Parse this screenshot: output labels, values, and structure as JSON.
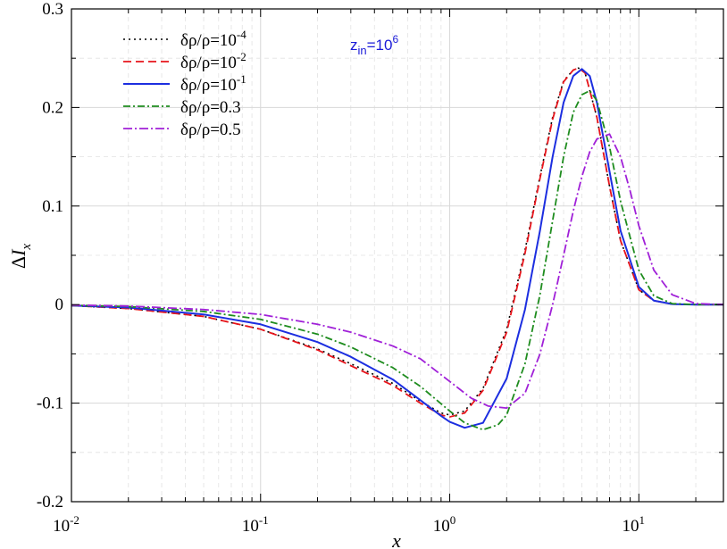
{
  "chart_data": {
    "type": "line",
    "xlabel": "x",
    "ylabel": "ΔI_x",
    "xscale": "log",
    "xlim": [
      0.01,
      28
    ],
    "ylim": [
      -0.2,
      0.3
    ],
    "grid": true,
    "legend_position": "top-left",
    "annotation": {
      "base": "z",
      "sub": "in",
      "mid": "=10",
      "sup": "6"
    },
    "x_ticks": [
      {
        "base": "10",
        "exp": "-2",
        "value": 0.01
      },
      {
        "base": "10",
        "exp": "-1",
        "value": 0.1
      },
      {
        "base": "10",
        "exp": "0",
        "value": 1
      },
      {
        "base": "10",
        "exp": "1",
        "value": 10
      }
    ],
    "y_ticks": [
      "-0.2",
      "-0.1",
      "0",
      "0.1",
      "0.2",
      "0.3"
    ],
    "y_tick_values": [
      -0.2,
      -0.1,
      0,
      0.1,
      0.2,
      0.3
    ],
    "series": [
      {
        "name": "δρ/ρ=10⁻⁴",
        "label_base": "δρ/ρ=10",
        "label_exp": "-4",
        "color": "#000000",
        "dash": "2,4",
        "width": 1.6,
        "x": [
          0.01,
          0.02,
          0.05,
          0.1,
          0.2,
          0.3,
          0.5,
          0.7,
          0.9,
          1.0,
          1.2,
          1.5,
          2.0,
          2.5,
          3.0,
          3.5,
          4.0,
          4.5,
          4.8,
          5.2,
          6.0,
          7.0,
          8.0,
          10.0,
          12.0,
          15.0,
          20.0,
          28.0
        ],
        "y": [
          -0.001,
          -0.004,
          -0.012,
          -0.025,
          -0.045,
          -0.06,
          -0.08,
          -0.098,
          -0.11,
          -0.112,
          -0.108,
          -0.085,
          -0.025,
          0.055,
          0.13,
          0.19,
          0.227,
          0.238,
          0.24,
          0.235,
          0.19,
          0.12,
          0.065,
          0.015,
          0.004,
          0.0005,
          0.0,
          0.0
        ]
      },
      {
        "name": "δρ/ρ=10⁻²",
        "label_base": "δρ/ρ=10",
        "label_exp": "-2",
        "color": "#e8141b",
        "dash": "9,5",
        "width": 1.8,
        "x": [
          0.01,
          0.02,
          0.05,
          0.1,
          0.2,
          0.3,
          0.5,
          0.7,
          0.9,
          1.0,
          1.2,
          1.5,
          2.0,
          2.5,
          3.0,
          3.5,
          4.0,
          4.5,
          4.8,
          5.2,
          6.0,
          7.0,
          8.0,
          10.0,
          12.0,
          15.0,
          20.0,
          28.0
        ],
        "y": [
          -0.001,
          -0.004,
          -0.012,
          -0.025,
          -0.046,
          -0.062,
          -0.082,
          -0.1,
          -0.112,
          -0.114,
          -0.11,
          -0.087,
          -0.028,
          0.052,
          0.128,
          0.188,
          0.226,
          0.238,
          0.24,
          0.235,
          0.19,
          0.12,
          0.065,
          0.015,
          0.004,
          0.0005,
          0.0,
          0.0
        ]
      },
      {
        "name": "δρ/ρ=10⁻¹",
        "label_base": "δρ/ρ=10",
        "label_exp": "-1",
        "color": "#1c2ee0",
        "dash": "",
        "width": 2.0,
        "x": [
          0.01,
          0.02,
          0.05,
          0.1,
          0.2,
          0.3,
          0.5,
          0.7,
          0.9,
          1.0,
          1.2,
          1.5,
          2.0,
          2.5,
          3.0,
          3.5,
          4.0,
          4.5,
          5.0,
          5.5,
          6.0,
          7.0,
          8.0,
          10.0,
          12.0,
          15.0,
          20.0,
          28.0
        ],
        "y": [
          -0.001,
          -0.003,
          -0.01,
          -0.02,
          -0.038,
          -0.053,
          -0.076,
          -0.097,
          -0.113,
          -0.119,
          -0.125,
          -0.12,
          -0.075,
          -0.005,
          0.075,
          0.15,
          0.205,
          0.232,
          0.239,
          0.232,
          0.205,
          0.135,
          0.075,
          0.018,
          0.004,
          0.0005,
          0.0,
          0.0
        ]
      },
      {
        "name": "δρ/ρ=0.3",
        "label_base": "δρ/ρ=0.3",
        "label_exp": "",
        "color": "#1e8c1e",
        "dash": "8,3,2,3",
        "width": 1.8,
        "x": [
          0.01,
          0.02,
          0.05,
          0.1,
          0.2,
          0.3,
          0.5,
          0.7,
          1.0,
          1.2,
          1.5,
          1.8,
          2.0,
          2.5,
          3.0,
          3.5,
          4.0,
          4.5,
          5.0,
          5.5,
          6.0,
          7.0,
          8.0,
          10.0,
          12.0,
          15.0,
          20.0,
          28.0
        ],
        "y": [
          -0.0008,
          -0.002,
          -0.007,
          -0.015,
          -0.03,
          -0.043,
          -0.064,
          -0.083,
          -0.108,
          -0.12,
          -0.127,
          -0.122,
          -0.112,
          -0.06,
          0.01,
          0.085,
          0.15,
          0.195,
          0.213,
          0.217,
          0.207,
          0.16,
          0.105,
          0.035,
          0.009,
          0.001,
          0.0,
          0.0
        ]
      },
      {
        "name": "δρ/ρ=0.5",
        "label_base": "δρ/ρ=0.5",
        "label_exp": "",
        "color": "#a020d8",
        "dash": "10,3,2,3",
        "width": 1.8,
        "x": [
          0.01,
          0.02,
          0.05,
          0.1,
          0.2,
          0.3,
          0.5,
          0.7,
          1.0,
          1.3,
          1.6,
          2.0,
          2.5,
          3.0,
          3.5,
          4.0,
          4.5,
          5.0,
          5.5,
          6.0,
          7.0,
          8.0,
          9.0,
          10.0,
          12.0,
          15.0,
          20.0,
          28.0
        ],
        "y": [
          -0.0005,
          -0.0015,
          -0.005,
          -0.01,
          -0.02,
          -0.028,
          -0.042,
          -0.055,
          -0.078,
          -0.095,
          -0.103,
          -0.105,
          -0.09,
          -0.05,
          0.0,
          0.05,
          0.095,
          0.13,
          0.155,
          0.168,
          0.173,
          0.15,
          0.115,
          0.08,
          0.035,
          0.01,
          0.001,
          0.0
        ]
      }
    ]
  }
}
